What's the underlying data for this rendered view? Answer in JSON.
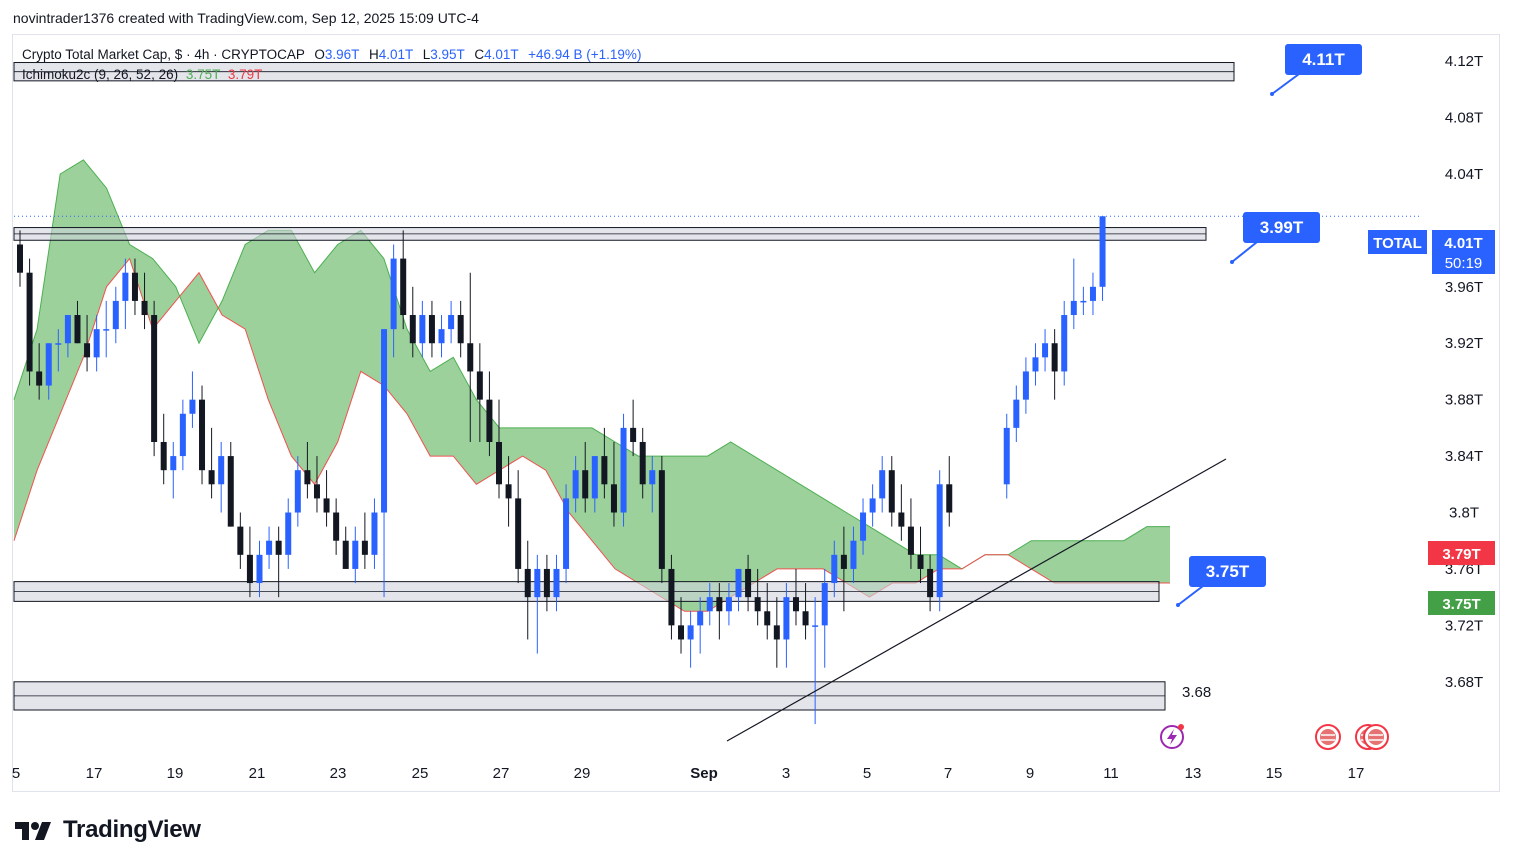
{
  "credit": "novintrader1376 created with TradingView.com, Sep 12, 2025 15:09 UTC-4",
  "legend": {
    "symbol": "Crypto Total Market Cap, $ · 4h · CRYPTOCAP",
    "o_label": "O",
    "o_value": "3.96T",
    "h_label": "H",
    "h_value": "4.01T",
    "l_label": "L",
    "l_value": "3.95T",
    "c_label": "C",
    "c_value": "4.01T",
    "change": "+46.94 B (+1.19%)",
    "indicator": "Ichimoku2c (9, 26, 52, 26)",
    "ind_a": "3.75T",
    "ind_b": "3.79T"
  },
  "footer": {
    "brand": "TradingView",
    "logo_icon": "tradingview-logo-icon"
  },
  "colors": {
    "bull": "#2962ff",
    "bear": "#131722",
    "cloud_fill": "#8bc98b",
    "cloud_edge_green": "#4caf50",
    "cloud_edge_red": "#ef5350",
    "zone_fill": "#d1d4dc",
    "label_blue": "#2962ff",
    "badge_red": "#f23645",
    "badge_green": "#43a047"
  },
  "chart_data": {
    "type": "candlestick",
    "y_range": [
      3.645,
      4.145
    ],
    "y_ticks": [
      {
        "v": 4.12,
        "label": "4.12T"
      },
      {
        "v": 4.08,
        "label": "4.08T"
      },
      {
        "v": 4.04,
        "label": "4.04T"
      },
      {
        "v": 3.96,
        "label": "3.96T"
      },
      {
        "v": 3.92,
        "label": "3.92T"
      },
      {
        "v": 3.88,
        "label": "3.88T"
      },
      {
        "v": 3.84,
        "label": "3.84T"
      },
      {
        "v": 3.8,
        "label": "3.8T"
      },
      {
        "v": 3.76,
        "label": "3.76T"
      },
      {
        "v": 3.72,
        "label": "3.72T"
      },
      {
        "v": 3.68,
        "label": "3.68T"
      }
    ],
    "x_ticks": [
      "5",
      "17",
      "19",
      "21",
      "23",
      "25",
      "27",
      "29",
      "Sep",
      "3",
      "5",
      "7",
      "9",
      "11",
      "13",
      "15",
      "17"
    ],
    "current": {
      "name": "TOTAL",
      "value": 4.01,
      "label": "4.01T",
      "countdown": "50:19"
    },
    "badges": [
      {
        "value": 3.79,
        "label": "3.79T",
        "color": "#f23645"
      },
      {
        "value": 3.75,
        "label": "3.75T",
        "color": "#43a047"
      }
    ],
    "zones": [
      {
        "from_bar": 0,
        "to_bar": 119,
        "low": 4.106,
        "high": 4.119
      },
      {
        "from_bar": 0,
        "to_bar": 116,
        "low": 3.993,
        "high": 4.002
      },
      {
        "from_bar": 0,
        "to_bar": 112,
        "low": 3.737,
        "high": 3.751
      },
      {
        "from_bar": 0,
        "to_bar": 113,
        "low": 3.66,
        "high": 3.68
      }
    ],
    "zone_label": {
      "text": "3.68",
      "value": 3.68
    },
    "callouts": [
      {
        "label": "4.11T",
        "value": 4.11
      },
      {
        "label": "3.99T",
        "value": 3.99
      },
      {
        "label": "3.75T",
        "value": 3.75
      }
    ],
    "trendline": {
      "from": {
        "bar": 70,
        "value": 3.653
      },
      "to": {
        "bar": 119,
        "value": 3.858
      }
    },
    "ohlc": [
      [
        3.99,
        4.0,
        3.96,
        3.97
      ],
      [
        3.97,
        3.98,
        3.89,
        3.9
      ],
      [
        3.9,
        3.92,
        3.88,
        3.89
      ],
      [
        3.89,
        3.92,
        3.88,
        3.92
      ],
      [
        3.92,
        3.93,
        3.9,
        3.92
      ],
      [
        3.92,
        3.94,
        3.91,
        3.94
      ],
      [
        3.94,
        3.95,
        3.92,
        3.92
      ],
      [
        3.92,
        3.94,
        3.9,
        3.91
      ],
      [
        3.91,
        3.94,
        3.9,
        3.93
      ],
      [
        3.93,
        3.95,
        3.91,
        3.93
      ],
      [
        3.93,
        3.96,
        3.92,
        3.95
      ],
      [
        3.95,
        3.98,
        3.93,
        3.97
      ],
      [
        3.97,
        3.98,
        3.94,
        3.95
      ],
      [
        3.95,
        3.97,
        3.93,
        3.94
      ],
      [
        3.94,
        3.95,
        3.84,
        3.85
      ],
      [
        3.85,
        3.87,
        3.82,
        3.83
      ],
      [
        3.83,
        3.85,
        3.81,
        3.84
      ],
      [
        3.84,
        3.88,
        3.83,
        3.87
      ],
      [
        3.87,
        3.9,
        3.86,
        3.88
      ],
      [
        3.88,
        3.89,
        3.82,
        3.83
      ],
      [
        3.83,
        3.86,
        3.81,
        3.82
      ],
      [
        3.82,
        3.85,
        3.8,
        3.84
      ],
      [
        3.84,
        3.85,
        3.79,
        3.79
      ],
      [
        3.79,
        3.8,
        3.76,
        3.77
      ],
      [
        3.77,
        3.79,
        3.74,
        3.75
      ],
      [
        3.75,
        3.78,
        3.74,
        3.77
      ],
      [
        3.77,
        3.79,
        3.76,
        3.78
      ],
      [
        3.78,
        3.79,
        3.74,
        3.77
      ],
      [
        3.77,
        3.81,
        3.76,
        3.8
      ],
      [
        3.8,
        3.84,
        3.79,
        3.83
      ],
      [
        3.83,
        3.85,
        3.81,
        3.82
      ],
      [
        3.82,
        3.84,
        3.8,
        3.81
      ],
      [
        3.81,
        3.83,
        3.79,
        3.8
      ],
      [
        3.8,
        3.81,
        3.77,
        3.78
      ],
      [
        3.78,
        3.79,
        3.76,
        3.76
      ],
      [
        3.76,
        3.79,
        3.75,
        3.78
      ],
      [
        3.78,
        3.8,
        3.76,
        3.77
      ],
      [
        3.77,
        3.81,
        3.76,
        3.8
      ],
      [
        3.8,
        3.93,
        3.74,
        3.93
      ],
      [
        3.93,
        3.99,
        3.91,
        3.98
      ],
      [
        3.98,
        4.0,
        3.93,
        3.94
      ],
      [
        3.94,
        3.96,
        3.91,
        3.92
      ],
      [
        3.92,
        3.95,
        3.91,
        3.94
      ],
      [
        3.94,
        3.95,
        3.91,
        3.92
      ],
      [
        3.92,
        3.94,
        3.91,
        3.93
      ],
      [
        3.93,
        3.95,
        3.92,
        3.94
      ],
      [
        3.94,
        3.95,
        3.91,
        3.92
      ],
      [
        3.92,
        3.97,
        3.85,
        3.9
      ],
      [
        3.9,
        3.92,
        3.85,
        3.88
      ],
      [
        3.88,
        3.9,
        3.84,
        3.85
      ],
      [
        3.85,
        3.88,
        3.81,
        3.82
      ],
      [
        3.82,
        3.84,
        3.79,
        3.81
      ],
      [
        3.81,
        3.83,
        3.75,
        3.76
      ],
      [
        3.76,
        3.78,
        3.71,
        3.74
      ],
      [
        3.74,
        3.77,
        3.7,
        3.76
      ],
      [
        3.76,
        3.77,
        3.73,
        3.74
      ],
      [
        3.74,
        3.77,
        3.73,
        3.76
      ],
      [
        3.76,
        3.82,
        3.75,
        3.81
      ],
      [
        3.81,
        3.84,
        3.8,
        3.83
      ],
      [
        3.83,
        3.85,
        3.8,
        3.81
      ],
      [
        3.81,
        3.84,
        3.8,
        3.84
      ],
      [
        3.84,
        3.86,
        3.81,
        3.82
      ],
      [
        3.82,
        3.85,
        3.79,
        3.8
      ],
      [
        3.8,
        3.87,
        3.79,
        3.86
      ],
      [
        3.86,
        3.88,
        3.84,
        3.85
      ],
      [
        3.85,
        3.86,
        3.81,
        3.82
      ],
      [
        3.82,
        3.84,
        3.8,
        3.83
      ],
      [
        3.83,
        3.84,
        3.75,
        3.76
      ],
      [
        3.76,
        3.77,
        3.71,
        3.72
      ],
      [
        3.72,
        3.74,
        3.7,
        3.71
      ],
      [
        3.71,
        3.73,
        3.69,
        3.72
      ],
      [
        3.72,
        3.74,
        3.7,
        3.73
      ],
      [
        3.73,
        3.75,
        3.72,
        3.74
      ],
      [
        3.74,
        3.75,
        3.71,
        3.73
      ],
      [
        3.73,
        3.75,
        3.72,
        3.74
      ],
      [
        3.74,
        3.76,
        3.73,
        3.76
      ],
      [
        3.76,
        3.77,
        3.73,
        3.74
      ],
      [
        3.74,
        3.76,
        3.72,
        3.73
      ],
      [
        3.73,
        3.75,
        3.71,
        3.72
      ],
      [
        3.72,
        3.74,
        3.69,
        3.71
      ],
      [
        3.71,
        3.75,
        3.69,
        3.74
      ],
      [
        3.74,
        3.76,
        3.72,
        3.73
      ],
      [
        3.73,
        3.75,
        3.71,
        3.72
      ],
      [
        3.72,
        3.74,
        3.65,
        3.72
      ],
      [
        3.72,
        3.76,
        3.69,
        3.75
      ],
      [
        3.75,
        3.78,
        3.74,
        3.77
      ],
      [
        3.77,
        3.79,
        3.73,
        3.76
      ],
      [
        3.76,
        3.79,
        3.75,
        3.78
      ],
      [
        3.78,
        3.81,
        3.77,
        3.8
      ],
      [
        3.8,
        3.82,
        3.79,
        3.81
      ],
      [
        3.81,
        3.84,
        3.8,
        3.83
      ],
      [
        3.83,
        3.84,
        3.79,
        3.8
      ],
      [
        3.8,
        3.82,
        3.78,
        3.79
      ],
      [
        3.79,
        3.81,
        3.76,
        3.77
      ],
      [
        3.77,
        3.79,
        3.75,
        3.76
      ],
      [
        3.76,
        3.77,
        3.73,
        3.74
      ],
      [
        3.74,
        3.83,
        3.73,
        3.82
      ],
      [
        3.82,
        3.84,
        3.79,
        3.8
      ]
    ]
  }
}
